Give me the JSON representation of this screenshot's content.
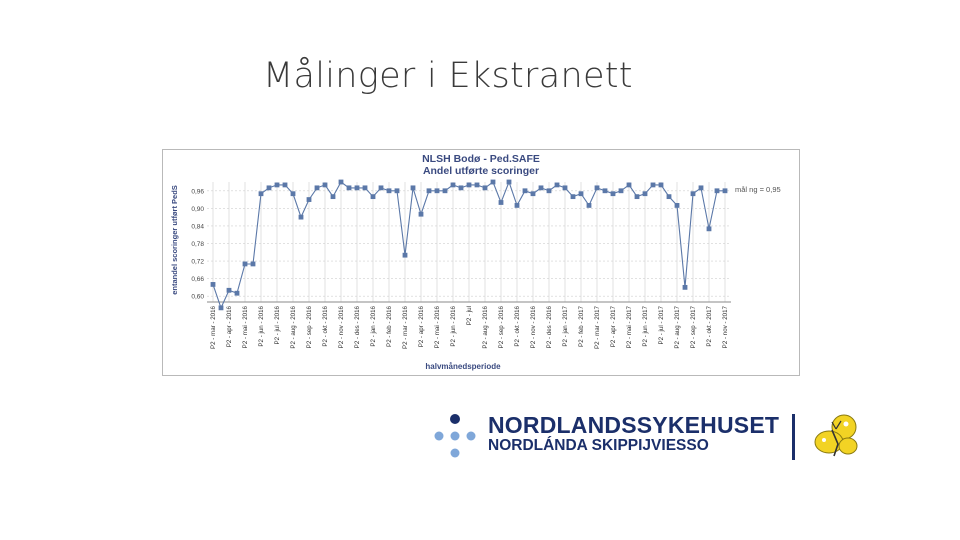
{
  "slide": {
    "title": "Målinger i Ekstranett"
  },
  "logo": {
    "line1": "NORDLANDSSYKEHUSET",
    "line2": "NORDLÁNDA SKIPPIJVIESSO",
    "colors": {
      "navy": "#1b2f6a",
      "light_blue": "#5b8fd0",
      "mascot_yellow": "#f2d324"
    }
  },
  "colors": {
    "series": "#5b78a8",
    "grid": "#cfcfcf",
    "axis": "#8a8a8a",
    "label": "#3a4a80"
  },
  "chart_data": {
    "type": "line",
    "title": "NLSH Bodø - Ped.SAFE",
    "subtitle": "Andel utførte scoringer",
    "xlabel": "halvmånedsperiode",
    "ylabel": "entandel scoringer utført PedS",
    "ylim": [
      0.58,
      0.99
    ],
    "yticks": [
      "0,60",
      "0,66",
      "0,72",
      "0,78",
      "0,84",
      "0,90",
      "0,96"
    ],
    "grid": true,
    "target_label": "mål ng = 0,95",
    "x_labels": [
      "P2 - mar - 2016",
      "P2 - apr - 2016",
      "P2 - mai - 2016",
      "P2 - jun - 2016",
      "P2 - jul - 2016",
      "P2 - aug - 2016",
      "P2 - sep - 2016",
      "P2 - okt - 2016",
      "P2 - nov - 2016",
      "P2 - des - 2016",
      "P2 - jan - 2016",
      "P2 - feb - 2016",
      "P2 - mar - 2016",
      "P2 - apr - 2016",
      "P2 - mai - 2016",
      "P2 - jun - 2016",
      "P2 - jul",
      "P2 - aug - 2016",
      "P2 - sep - 2016",
      "P2 - okt - 2016",
      "P2 - nov - 2016",
      "P2 - des - 2016",
      "P2 - jan - 2017",
      "P2 - feb - 2017",
      "P2 - mar - 2017",
      "P2 - apr - 2017",
      "P2 - mai - 2017",
      "P2 - jun - 2017",
      "P2 - jul - 2017",
      "P2 - aug - 2017",
      "P2 - sep - 2017",
      "P2 - okt - 2017",
      "P2 - nov - 2017"
    ],
    "series": [
      {
        "values": [
          0.64,
          0.56,
          0.62,
          0.61,
          0.71,
          0.71,
          0.95,
          0.97,
          0.98,
          0.98,
          0.95,
          0.87,
          0.93,
          0.97,
          0.98,
          0.94,
          0.99,
          0.97,
          0.97,
          0.97,
          0.94,
          0.97,
          0.96,
          0.96,
          0.74,
          0.97,
          0.88,
          0.96,
          0.96,
          0.96,
          0.98,
          0.97,
          0.98,
          0.98,
          0.97,
          0.99,
          0.92,
          0.99,
          0.91,
          0.96,
          0.95,
          0.97,
          0.96,
          0.98,
          0.97,
          0.94,
          0.95,
          0.91,
          0.97,
          0.96,
          0.95,
          0.96,
          0.98,
          0.94,
          0.95,
          0.98,
          0.98,
          0.94,
          0.91,
          0.63,
          0.95,
          0.97,
          0.83,
          0.96,
          0.96
        ]
      }
    ]
  }
}
